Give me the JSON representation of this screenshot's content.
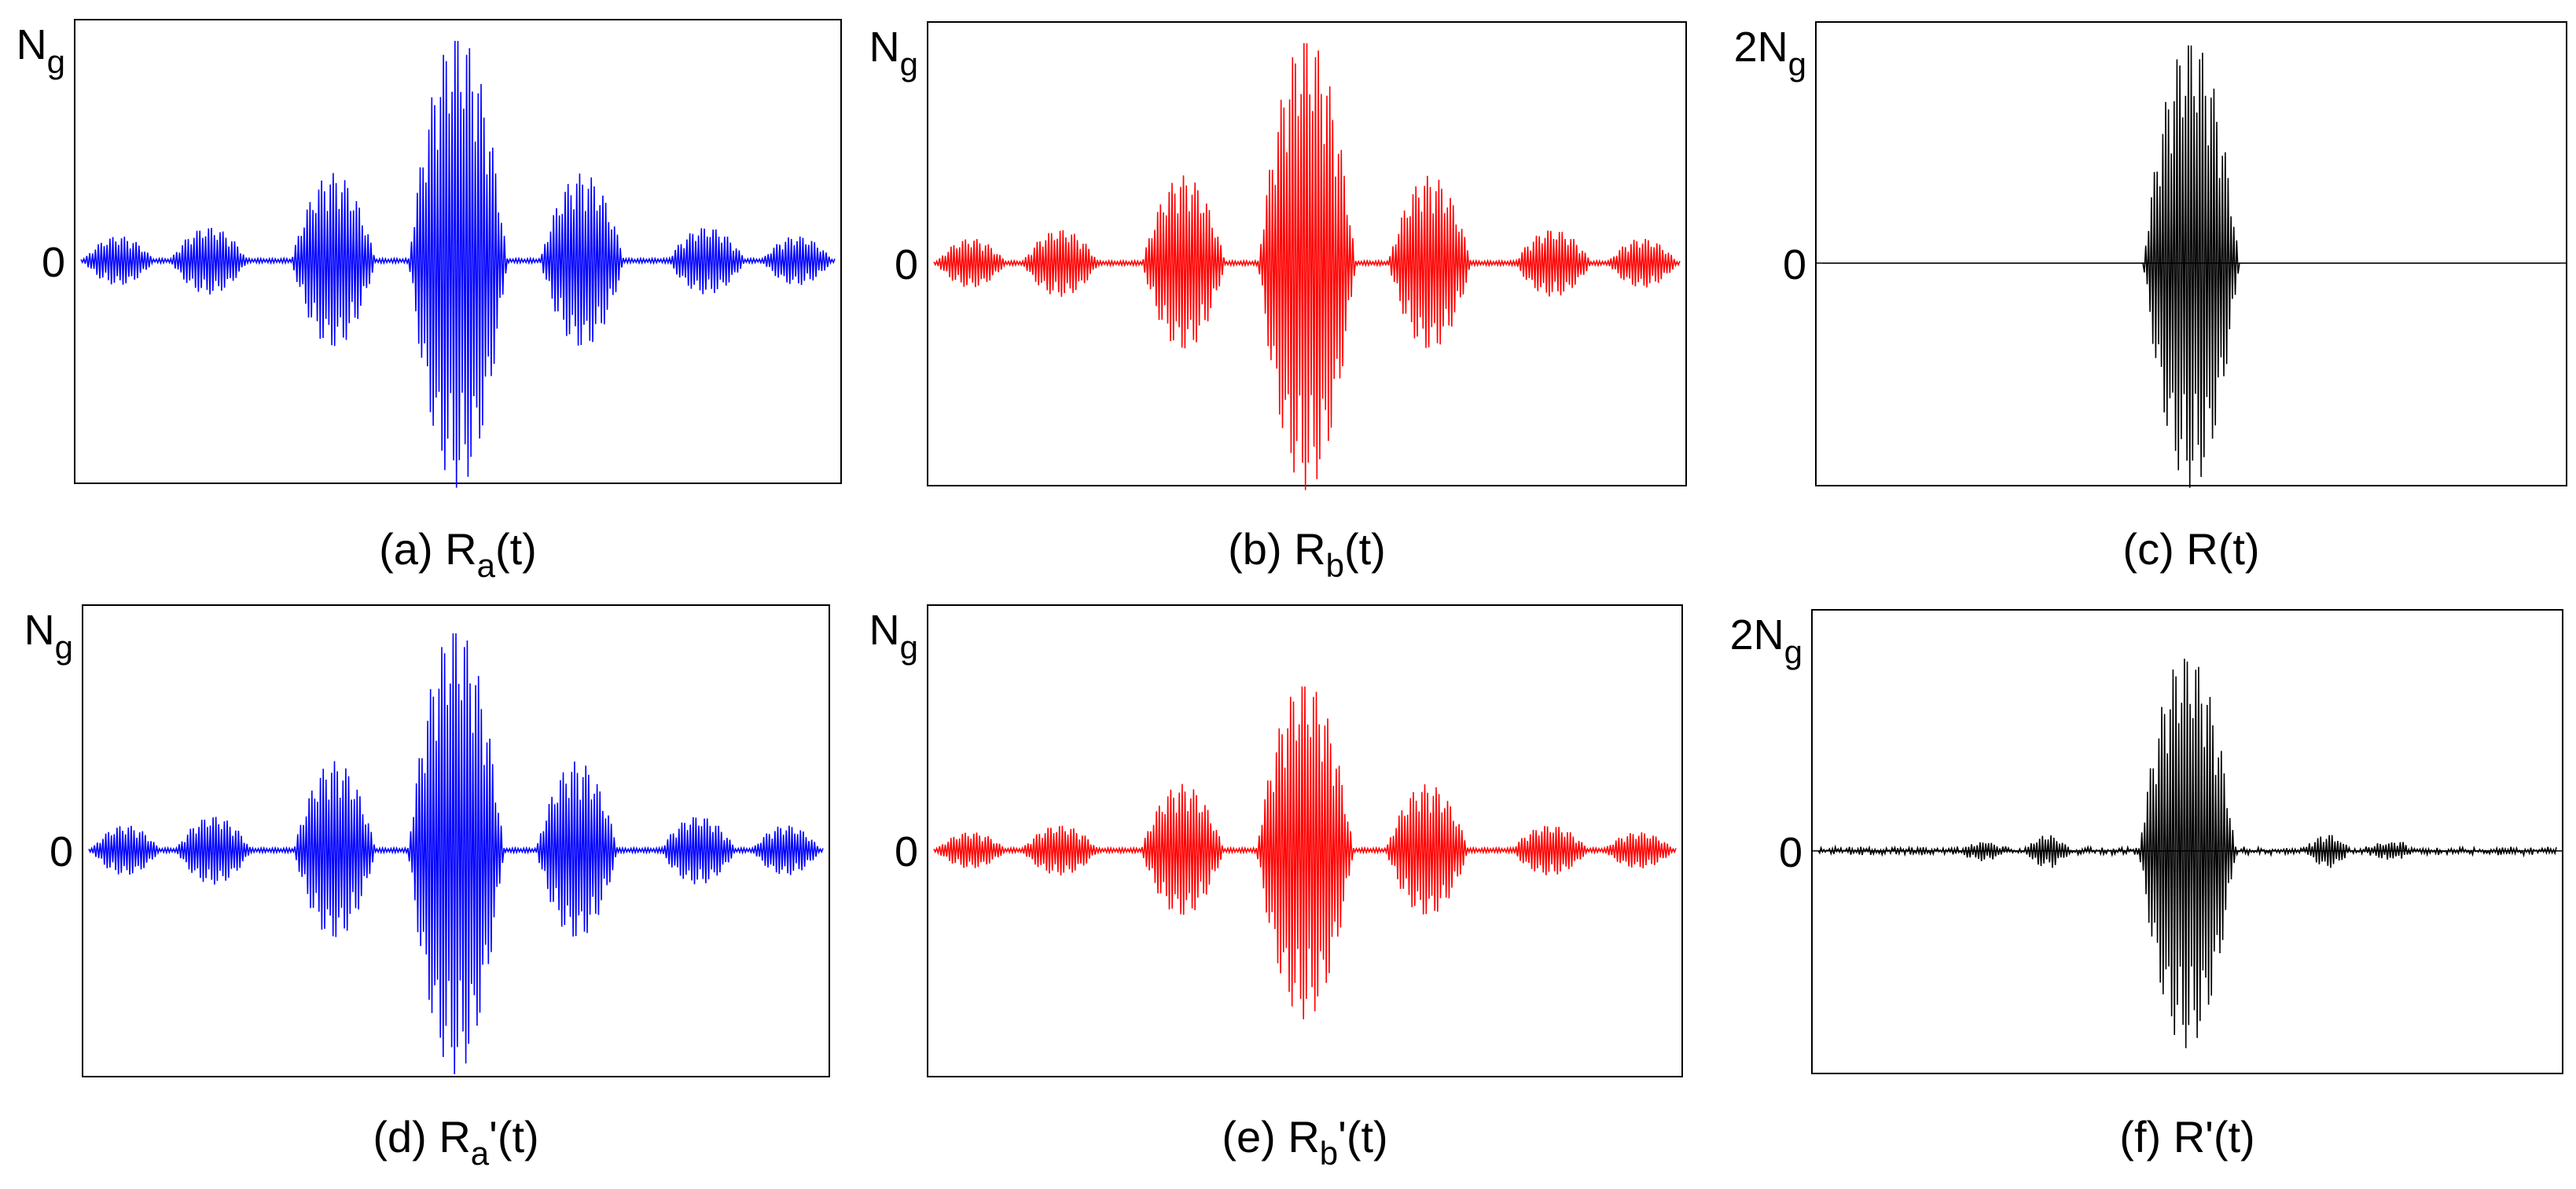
{
  "figure": {
    "panels": [
      {
        "id": "a",
        "caption_prefix": "(a) R",
        "caption_sub": "a",
        "caption_suffix": "(t)",
        "top_tick_main": "N",
        "top_tick_sub": "g",
        "zero_tick": "0",
        "color": "#0000ff"
      },
      {
        "id": "b",
        "caption_prefix": "(b) R",
        "caption_sub": "b",
        "caption_suffix": "(t)",
        "top_tick_main": "N",
        "top_tick_sub": "g",
        "zero_tick": "0",
        "color": "#ff0000"
      },
      {
        "id": "c",
        "caption_prefix": "(c) R",
        "caption_sub": "",
        "caption_suffix": "(t)",
        "top_tick_main": "2N",
        "top_tick_sub": "g",
        "zero_tick": "0",
        "color": "#000000"
      },
      {
        "id": "d",
        "caption_prefix": "(d) R",
        "caption_sub": "a",
        "caption_suffix": "'(t)",
        "top_tick_main": "N",
        "top_tick_sub": "g",
        "zero_tick": "0",
        "color": "#0000ff"
      },
      {
        "id": "e",
        "caption_prefix": "(e) R",
        "caption_sub": "b",
        "caption_suffix": "'(t)",
        "top_tick_main": "N",
        "top_tick_sub": "g",
        "zero_tick": "0",
        "color": "#ff0000"
      },
      {
        "id": "f",
        "caption_prefix": "(f) R",
        "caption_sub": "",
        "caption_suffix": "'(t)",
        "top_tick_main": "2N",
        "top_tick_sub": "g",
        "zero_tick": "0",
        "color": "#000000"
      }
    ]
  },
  "chart_data": [
    {
      "type": "line",
      "title": "(a) Ra(t)",
      "series_color": "#0000ff",
      "y_ticks": [
        "0",
        "Ng"
      ],
      "ylim": [
        -1,
        1
      ],
      "envelope": {
        "kind": "sinc_bursts",
        "peak": 1.0,
        "side_lobes": [
          0.38,
          0.14,
          0.1
        ],
        "burst_count": 9
      },
      "noise_floor": 0.0
    },
    {
      "type": "line",
      "title": "(b) Rb(t)",
      "series_color": "#ff0000",
      "y_ticks": [
        "0",
        "Ng"
      ],
      "ylim": [
        -1,
        1
      ],
      "envelope": {
        "kind": "sinc_bursts",
        "peak": 1.0,
        "side_lobes": [
          0.38,
          0.14,
          0.1
        ],
        "burst_count": 9
      },
      "noise_floor": 0.0
    },
    {
      "type": "line",
      "title": "(c) R(t)",
      "series_color": "#000000",
      "y_ticks": [
        "0",
        "2Ng"
      ],
      "ylim": [
        -1,
        1
      ],
      "envelope": {
        "kind": "single_burst",
        "peak": 1.0,
        "side_lobes": [],
        "burst_count": 1
      },
      "noise_floor": 0.0
    },
    {
      "type": "line",
      "title": "(d) Ra'(t)",
      "series_color": "#0000ff",
      "y_ticks": [
        "0",
        "Ng"
      ],
      "ylim": [
        -1,
        1
      ],
      "envelope": {
        "kind": "sinc_bursts",
        "peak": 0.97,
        "side_lobes": [
          0.38,
          0.14,
          0.1
        ],
        "burst_count": 9
      },
      "noise_floor": 0.0
    },
    {
      "type": "line",
      "title": "(e) Rb'(t)",
      "series_color": "#ff0000",
      "y_ticks": [
        "0",
        "Ng"
      ],
      "ylim": [
        -1,
        1
      ],
      "envelope": {
        "kind": "sinc_bursts",
        "peak": 0.73,
        "side_lobes": [
          0.28,
          0.1,
          0.07
        ],
        "burst_count": 9
      },
      "noise_floor": 0.0
    },
    {
      "type": "line",
      "title": "(f) R'(t)",
      "series_color": "#000000",
      "y_ticks": [
        "0",
        "2Ng"
      ],
      "ylim": [
        -1,
        1
      ],
      "envelope": {
        "kind": "single_burst",
        "peak": 0.87,
        "side_lobes": [
          0.06,
          0.03
        ],
        "burst_count": 1
      },
      "noise_floor": 0.02
    }
  ]
}
